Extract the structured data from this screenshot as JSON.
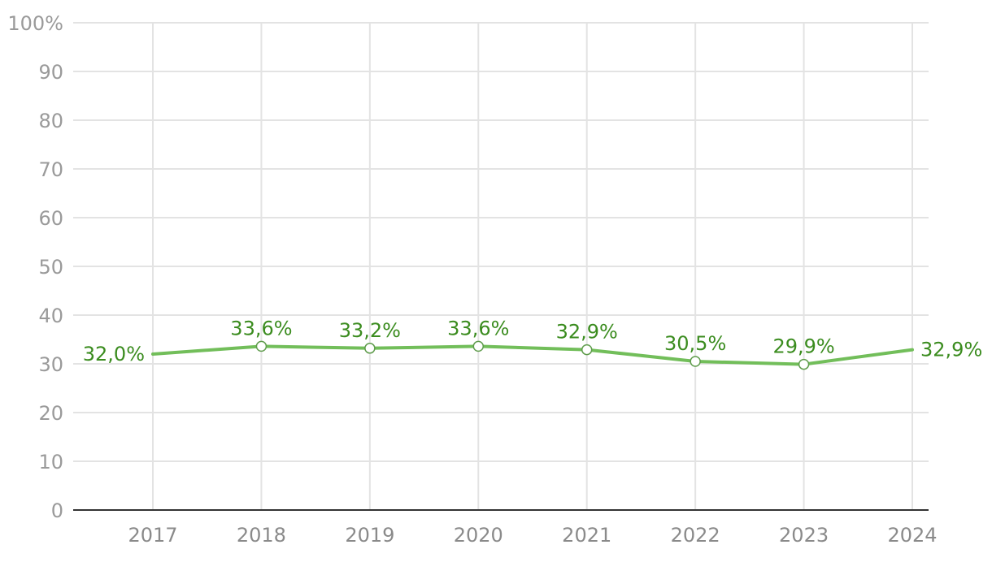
{
  "chart_data": {
    "type": "line",
    "title": "",
    "xlabel": "",
    "ylabel": "",
    "x": [
      "2017",
      "2018",
      "2019",
      "2020",
      "2021",
      "2022",
      "2023",
      "2024"
    ],
    "series": [
      {
        "values": [
          32.0,
          33.6,
          33.2,
          33.6,
          32.9,
          30.5,
          29.9,
          32.9
        ],
        "labels": [
          "32,0%",
          "33,6%",
          "33,2%",
          "33,6%",
          "32,9%",
          "30,5%",
          "29,9%",
          "32,9%"
        ],
        "color": "#72be5a",
        "label_color": "#3b8c1f",
        "marker_color": "#5f9c4c"
      }
    ],
    "ylim": [
      0,
      100
    ],
    "y_ticks": [
      0,
      10,
      20,
      30,
      40,
      50,
      60,
      70,
      80,
      90,
      100
    ],
    "y_tick_labels": [
      "0",
      "10",
      "20",
      "30",
      "40",
      "50",
      "60",
      "70",
      "80",
      "90",
      "100%"
    ],
    "grid": true,
    "legend": "none"
  }
}
